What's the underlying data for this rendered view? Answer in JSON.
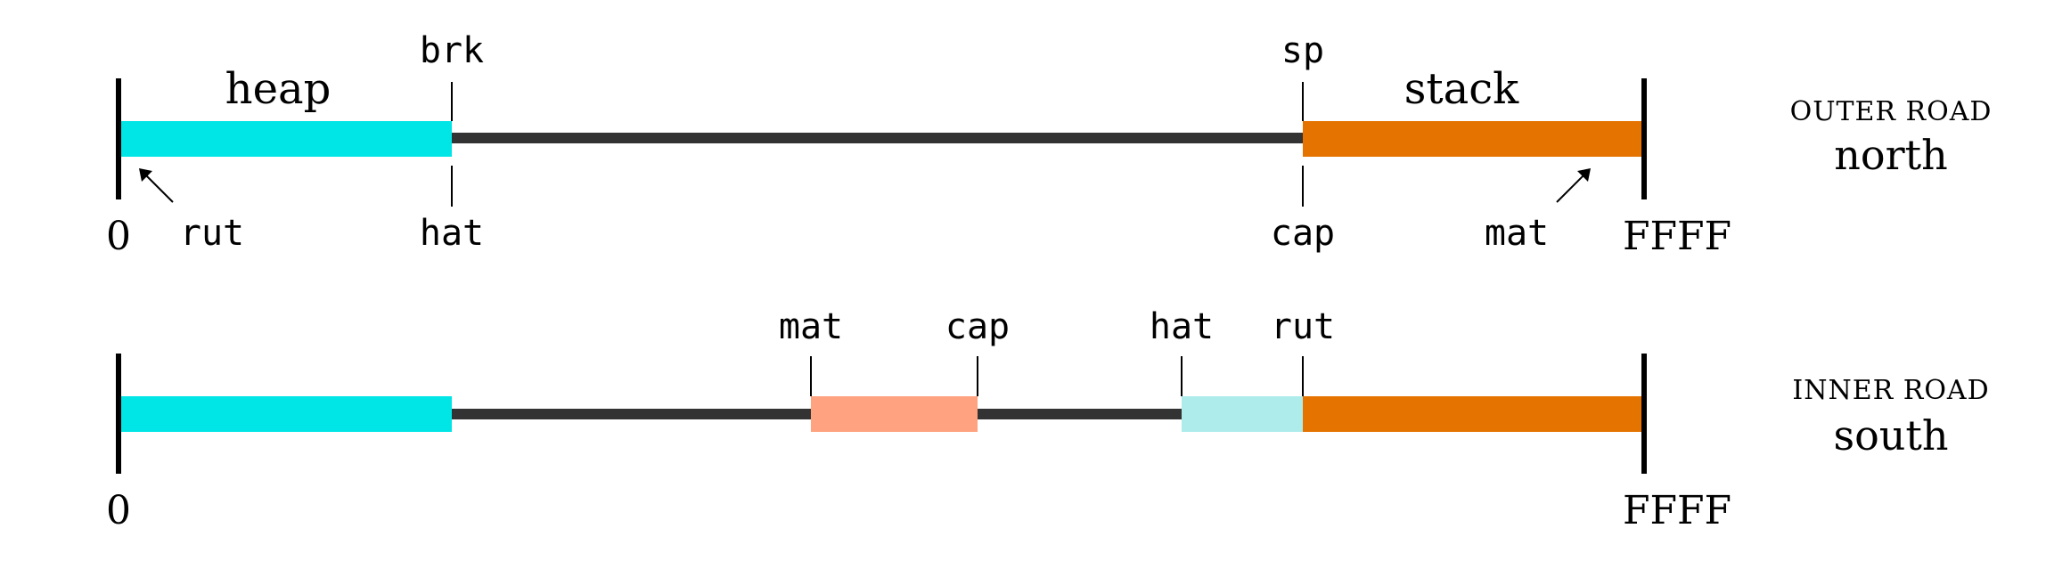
{
  "colors": {
    "heap": "#00E5E5",
    "stack": "#E57300",
    "salmon": "#FFA27F",
    "pale_cyan": "#AEECEC",
    "road": "#333333",
    "ink": "#000000"
  },
  "outer": {
    "region_labels": {
      "heap": "heap",
      "stack": "stack"
    },
    "top_markers": {
      "brk": "brk",
      "sp": "sp"
    },
    "bottom_markers": {
      "rut": "rut",
      "hat": "hat",
      "cap": "cap",
      "mat": "mat"
    },
    "ends": {
      "start": "0",
      "end": "FFFF"
    },
    "side": {
      "caption": "OUTER ROAD",
      "direction": "north"
    }
  },
  "inner": {
    "top_markers": {
      "mat": "mat",
      "cap": "cap",
      "hat": "hat",
      "rut": "rut"
    },
    "ends": {
      "start": "0",
      "end": "FFFF"
    },
    "side": {
      "caption": "INNER ROAD",
      "direction": "south"
    }
  }
}
